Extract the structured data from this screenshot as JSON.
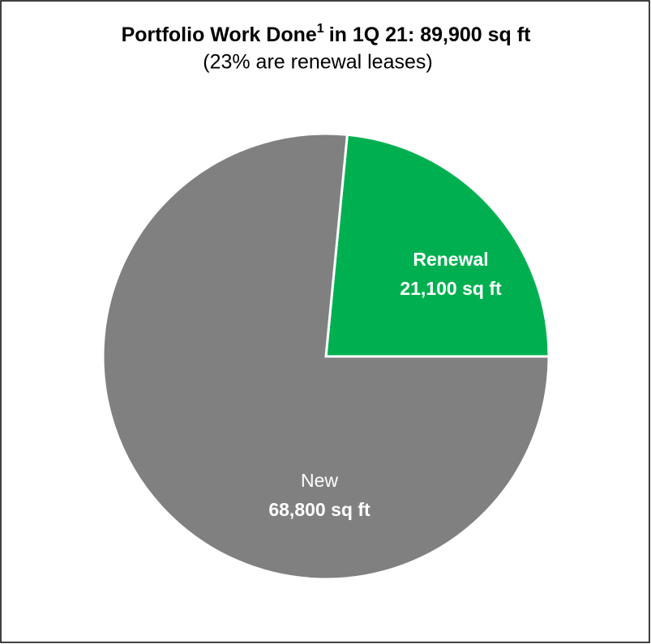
{
  "chart_data": {
    "type": "pie",
    "title": "Portfolio Work Done",
    "title_superscript": "1",
    "title_rest": "in 1Q 21: 89,900 sq ft",
    "subtitle": "(23% are renewal leases)",
    "categories": [
      "Renewal",
      "New"
    ],
    "values": [
      21100,
      68800
    ],
    "value_labels": [
      "21,100 sq ft",
      "68,800 sq ft"
    ],
    "colors": [
      "#00b050",
      "#808080"
    ]
  }
}
